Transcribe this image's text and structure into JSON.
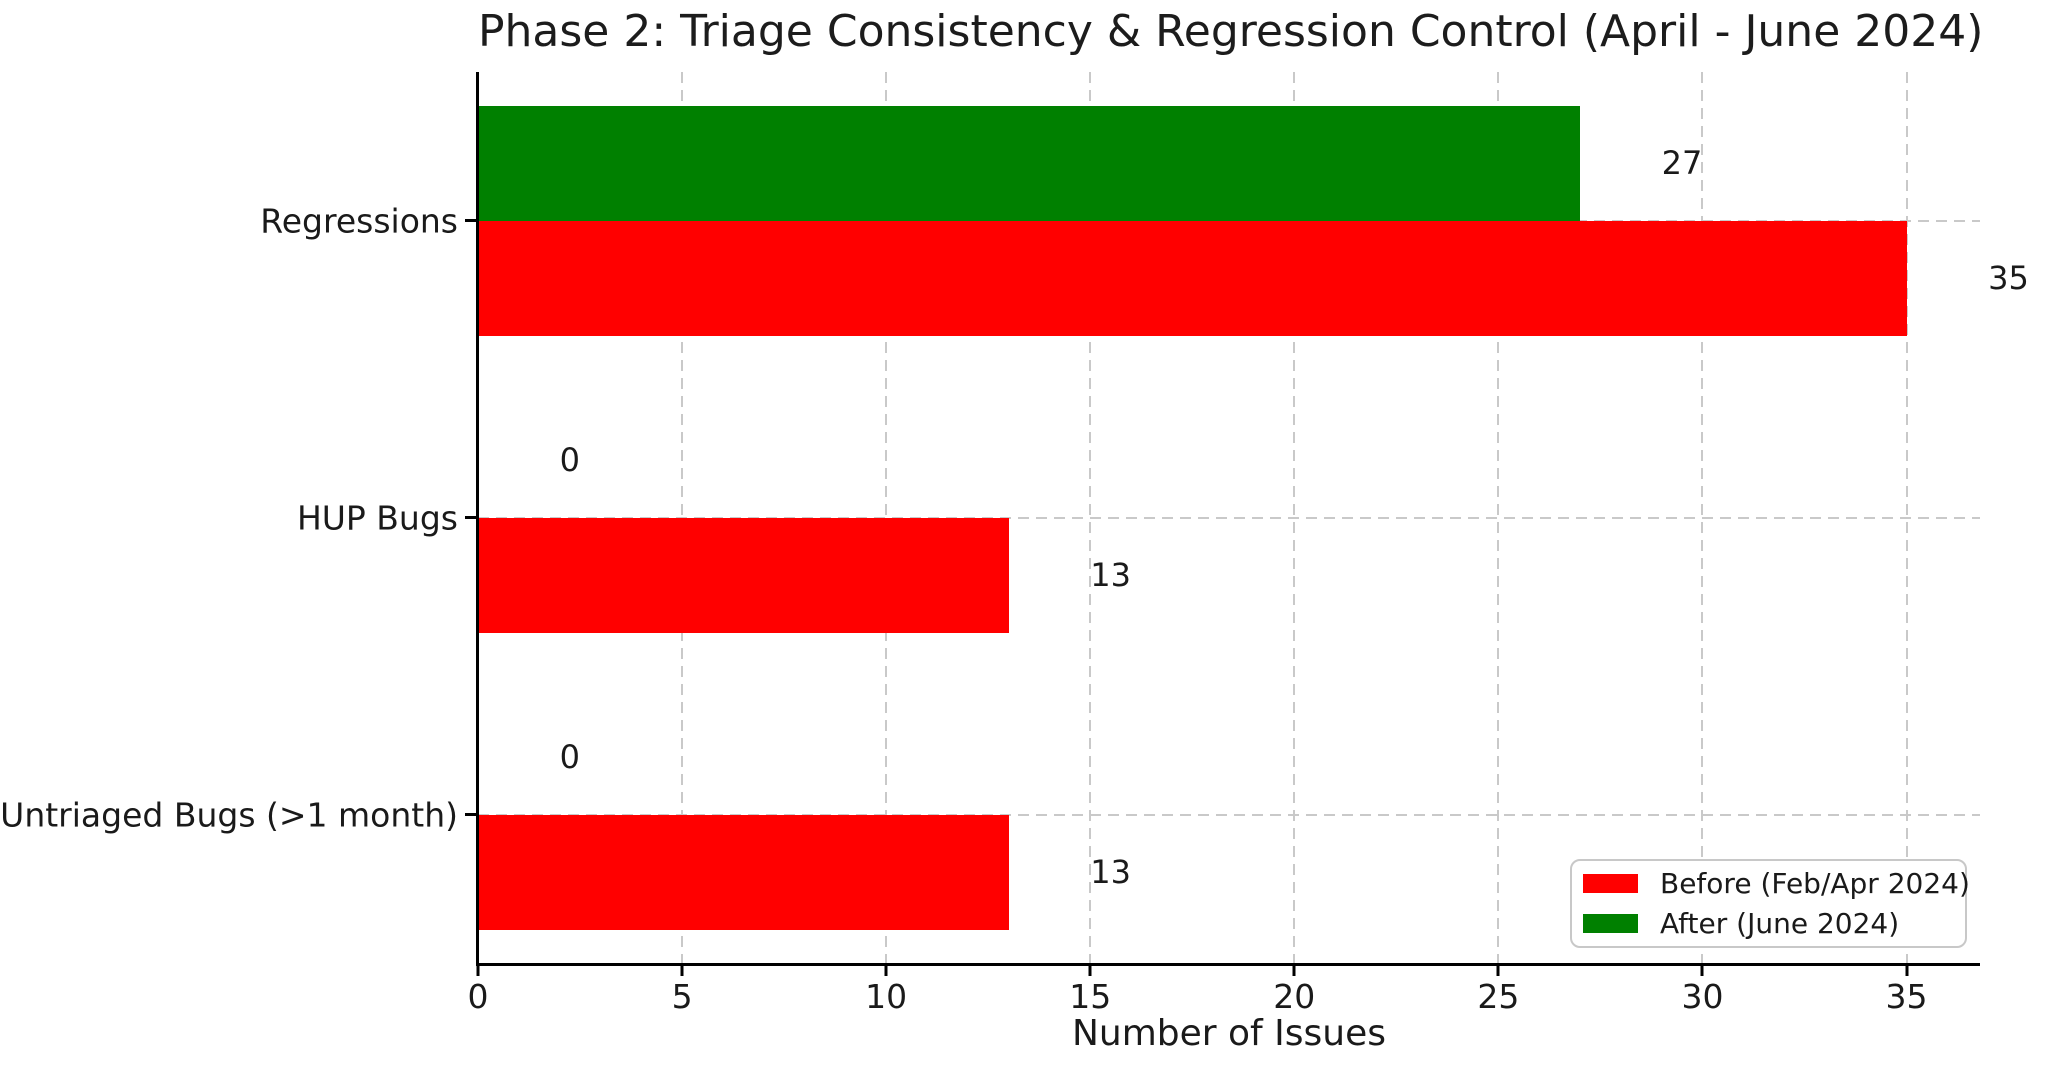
{
  "chart_data": {
    "type": "bar",
    "orientation": "horizontal",
    "title": "Phase 2: Triage Consistency & Regression Control (April - June 2024)",
    "xlabel": "Number of Issues",
    "categories": [
      "Regressions",
      "HUP Bugs",
      "Untriaged Bugs (>1 month)"
    ],
    "series": [
      {
        "name": "Before (Feb/Apr 2024)",
        "color": "#ff0000",
        "values": [
          35,
          13,
          13
        ]
      },
      {
        "name": "After (June 2024)",
        "color": "#008000",
        "values": [
          27,
          0,
          0
        ]
      }
    ],
    "bar_value_labels": true,
    "value_label_offset_units": 2,
    "xticks": [
      0,
      5,
      10,
      15,
      20,
      25,
      30,
      35
    ],
    "xlim": [
      0,
      36.8
    ],
    "grid": true,
    "grid_color": "#c9c9c9",
    "legend_position": "lower right"
  }
}
